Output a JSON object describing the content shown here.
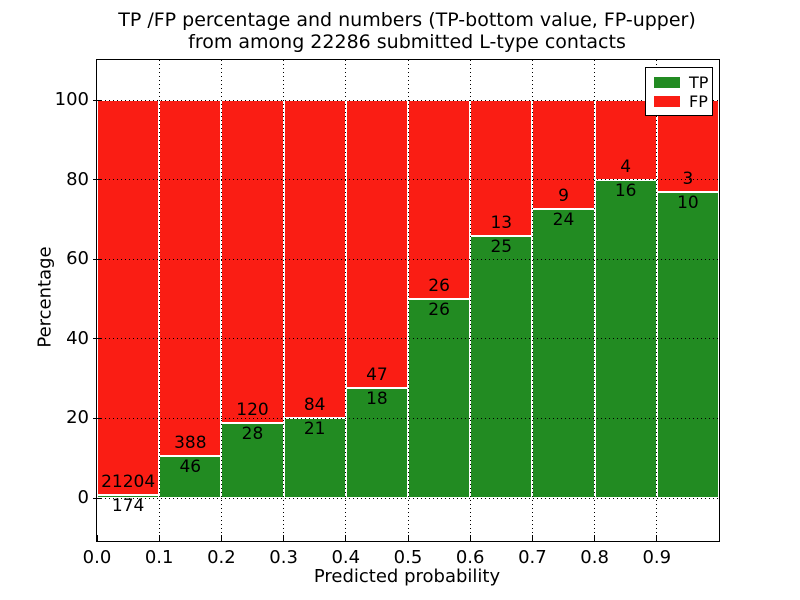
{
  "figure": {
    "title_line1": "TP /FP percentage and numbers (TP-bottom value, FP-upper)",
    "title_line2": "from among 22286 submitted L-type contacts",
    "xlabel": "Predicted probability",
    "ylabel": "Percentage"
  },
  "legend": {
    "items": [
      {
        "label": "TP",
        "color": "#228b22"
      },
      {
        "label": "FP",
        "color": "#fa1d14"
      }
    ]
  },
  "chart_data": {
    "type": "bar",
    "stacked": true,
    "normalized_to_percent": true,
    "title": "TP /FP percentage and numbers (TP-bottom value, FP-upper) from among 22286 submitted L-type contacts",
    "xlabel": "Predicted probability",
    "ylabel": "Percentage",
    "total_submitted_contacts": 22286,
    "bin_width": 0.1,
    "bin_starts": [
      0.0,
      0.1,
      0.2,
      0.3,
      0.4,
      0.5,
      0.6,
      0.7,
      0.8,
      0.9
    ],
    "x_tick_labels": [
      "0.0",
      "0.1",
      "0.2",
      "0.3",
      "0.4",
      "0.5",
      "0.6",
      "0.7",
      "0.8",
      "0.9"
    ],
    "y_ticks": [
      0,
      20,
      40,
      60,
      80,
      100
    ],
    "xlim": [
      0.0,
      1.0
    ],
    "ylim": [
      -10.8,
      109.8
    ],
    "grid": "dotted-black-both-axes",
    "legend_position": "upper right",
    "bar_edge_color": "#ffffff",
    "series": [
      {
        "name": "TP",
        "color": "#228b22",
        "counts": [
          174,
          46,
          28,
          21,
          18,
          26,
          25,
          24,
          16,
          10
        ]
      },
      {
        "name": "FP",
        "color": "#fa1d14",
        "counts": [
          21204,
          388,
          120,
          84,
          47,
          26,
          13,
          9,
          4,
          3
        ]
      }
    ],
    "tp_percent_of_bin": [
      0.81,
      10.6,
      18.92,
      20.0,
      27.69,
      50.0,
      65.79,
      72.73,
      80.0,
      76.92
    ]
  }
}
